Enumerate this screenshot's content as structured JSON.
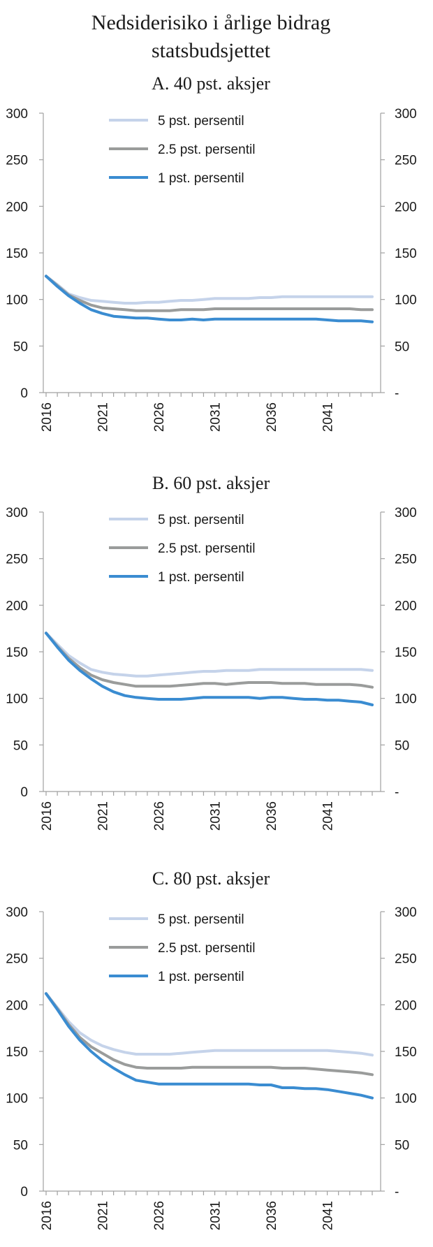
{
  "figure_title_line1": "Nedsiderisiko i årlige bidrag",
  "figure_title_line2": "statsbudsjettet",
  "chart_data": [
    {
      "type": "line",
      "title": "A. 40 pst. aksjer",
      "x": [
        2016,
        2017,
        2018,
        2019,
        2020,
        2021,
        2022,
        2023,
        2024,
        2025,
        2026,
        2027,
        2028,
        2029,
        2030,
        2031,
        2032,
        2033,
        2034,
        2035,
        2036,
        2037,
        2038,
        2039,
        2040,
        2041,
        2042,
        2043,
        2044,
        2045
      ],
      "x_tick_labels": [
        "2016",
        "2021",
        "2026",
        "2031",
        "2036",
        "2041"
      ],
      "y_tick_labels_left": [
        "0",
        "50",
        "100",
        "150",
        "200",
        "250",
        "300"
      ],
      "y_tick_labels_right": [
        "-",
        "50",
        "100",
        "150",
        "200",
        "250",
        "300"
      ],
      "ylim": [
        0,
        300
      ],
      "legend_position": "top-center",
      "series": [
        {
          "name": "5 pst. persentil",
          "color": "#c5d3ea",
          "values": [
            125,
            116,
            106,
            102,
            99,
            98,
            97,
            96,
            96,
            97,
            97,
            98,
            99,
            99,
            100,
            101,
            101,
            101,
            101,
            102,
            102,
            103,
            103,
            103,
            103,
            103,
            103,
            103,
            103,
            103
          ]
        },
        {
          "name": "2.5 pst. persentil",
          "color": "#9a9c9b",
          "values": [
            125,
            115,
            105,
            99,
            94,
            91,
            90,
            89,
            88,
            88,
            88,
            88,
            89,
            89,
            89,
            90,
            90,
            90,
            90,
            90,
            90,
            90,
            90,
            90,
            90,
            90,
            90,
            90,
            89,
            89
          ]
        },
        {
          "name": "1 pst. persentil",
          "color": "#3a8cd1",
          "values": [
            125,
            114,
            104,
            96,
            89,
            85,
            82,
            81,
            80,
            80,
            79,
            78,
            78,
            79,
            78,
            79,
            79,
            79,
            79,
            79,
            79,
            79,
            79,
            79,
            79,
            78,
            77,
            77,
            77,
            76
          ]
        }
      ]
    },
    {
      "type": "line",
      "title": "B. 60 pst. aksjer",
      "x": [
        2016,
        2017,
        2018,
        2019,
        2020,
        2021,
        2022,
        2023,
        2024,
        2025,
        2026,
        2027,
        2028,
        2029,
        2030,
        2031,
        2032,
        2033,
        2034,
        2035,
        2036,
        2037,
        2038,
        2039,
        2040,
        2041,
        2042,
        2043,
        2044,
        2045
      ],
      "x_tick_labels": [
        "2016",
        "2021",
        "2026",
        "2031",
        "2036",
        "2041"
      ],
      "y_tick_labels_left": [
        "0",
        "50",
        "100",
        "150",
        "200",
        "250",
        "300"
      ],
      "y_tick_labels_right": [
        "-",
        "50",
        "100",
        "150",
        "200",
        "250",
        "300"
      ],
      "ylim": [
        0,
        300
      ],
      "legend_position": "top-center",
      "series": [
        {
          "name": "5 pst. persentil",
          "color": "#c5d3ea",
          "values": [
            170,
            158,
            146,
            138,
            131,
            128,
            126,
            125,
            124,
            124,
            125,
            126,
            127,
            128,
            129,
            129,
            130,
            130,
            130,
            131,
            131,
            131,
            131,
            131,
            131,
            131,
            131,
            131,
            131,
            130
          ]
        },
        {
          "name": "2.5 pst. persentil",
          "color": "#9a9c9b",
          "values": [
            170,
            156,
            143,
            133,
            125,
            120,
            117,
            115,
            113,
            113,
            113,
            113,
            114,
            115,
            116,
            116,
            115,
            116,
            117,
            117,
            117,
            116,
            116,
            116,
            115,
            115,
            115,
            115,
            114,
            112
          ]
        },
        {
          "name": "1 pst. persentil",
          "color": "#3a8cd1",
          "values": [
            170,
            155,
            141,
            130,
            121,
            113,
            107,
            103,
            101,
            100,
            99,
            99,
            99,
            100,
            101,
            101,
            101,
            101,
            101,
            100,
            101,
            101,
            100,
            99,
            99,
            98,
            98,
            97,
            96,
            93
          ]
        }
      ]
    },
    {
      "type": "line",
      "title": "C. 80 pst. aksjer",
      "x": [
        2016,
        2017,
        2018,
        2019,
        2020,
        2021,
        2022,
        2023,
        2024,
        2025,
        2026,
        2027,
        2028,
        2029,
        2030,
        2031,
        2032,
        2033,
        2034,
        2035,
        2036,
        2037,
        2038,
        2039,
        2040,
        2041,
        2042,
        2043,
        2044,
        2045
      ],
      "x_tick_labels": [
        "2016",
        "2021",
        "2026",
        "2031",
        "2036",
        "2041"
      ],
      "y_tick_labels_left": [
        "0",
        "50",
        "100",
        "150",
        "200",
        "250",
        "300"
      ],
      "y_tick_labels_right": [
        "-",
        "50",
        "100",
        "150",
        "200",
        "250",
        "300"
      ],
      "ylim": [
        0,
        300
      ],
      "legend_position": "top-center",
      "series": [
        {
          "name": "5 pst. persentil",
          "color": "#c5d3ea",
          "values": [
            212,
            197,
            182,
            170,
            162,
            156,
            152,
            149,
            147,
            147,
            147,
            147,
            148,
            149,
            150,
            151,
            151,
            151,
            151,
            151,
            151,
            151,
            151,
            151,
            151,
            151,
            150,
            149,
            148,
            146
          ]
        },
        {
          "name": "2.5 pst. persentil",
          "color": "#9a9c9b",
          "values": [
            212,
            196,
            179,
            165,
            155,
            148,
            141,
            136,
            133,
            132,
            132,
            132,
            132,
            133,
            133,
            133,
            133,
            133,
            133,
            133,
            133,
            132,
            132,
            132,
            131,
            130,
            129,
            128,
            127,
            125
          ]
        },
        {
          "name": "1 pst. persentil",
          "color": "#3a8cd1",
          "values": [
            212,
            195,
            177,
            162,
            150,
            140,
            132,
            125,
            119,
            117,
            115,
            115,
            115,
            115,
            115,
            115,
            115,
            115,
            115,
            114,
            114,
            111,
            111,
            110,
            110,
            109,
            107,
            105,
            103,
            100
          ]
        }
      ]
    }
  ]
}
